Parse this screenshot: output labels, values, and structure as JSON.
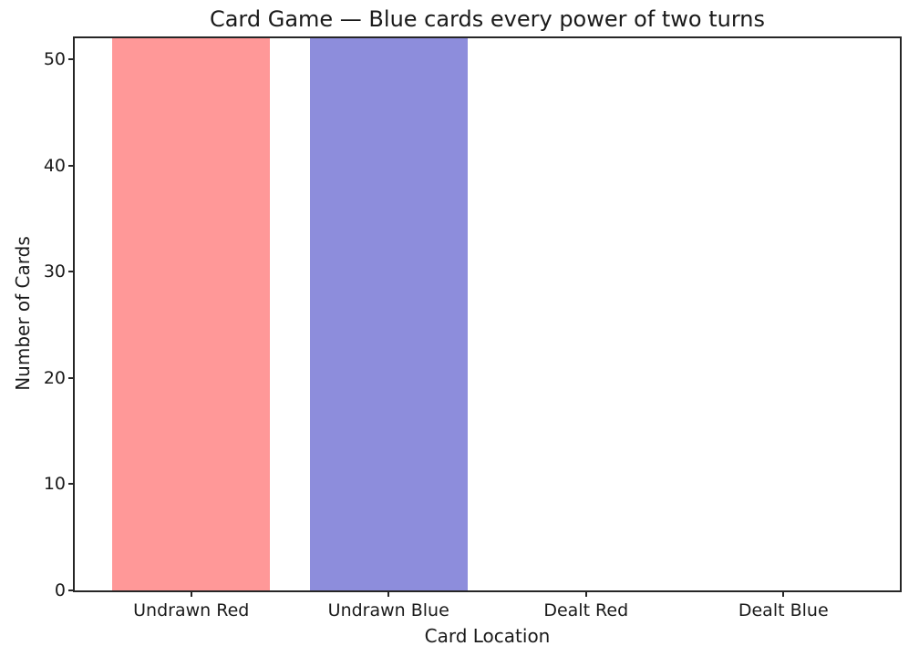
{
  "figure": {
    "background": "#ffffff",
    "text_color": "#1a1a1a",
    "axis_color": "#262626"
  },
  "chart_data": {
    "type": "bar",
    "title": "Card Game — Blue cards every power of two turns",
    "xlabel": "Card Location",
    "ylabel": "Number of Cards",
    "categories": [
      "Undrawn Red",
      "Undrawn Blue",
      "Dealt Red",
      "Dealt Blue"
    ],
    "values": [
      52,
      52,
      0,
      0
    ],
    "bar_colors": [
      "#ff9898",
      "#8d8ddc",
      "#ff9898",
      "#8d8ddc"
    ],
    "ylim": [
      0,
      52
    ],
    "yticks": [
      0,
      10,
      20,
      30,
      40,
      50
    ],
    "grid": false,
    "legend": "none",
    "bars_clipped_at_top": true
  }
}
